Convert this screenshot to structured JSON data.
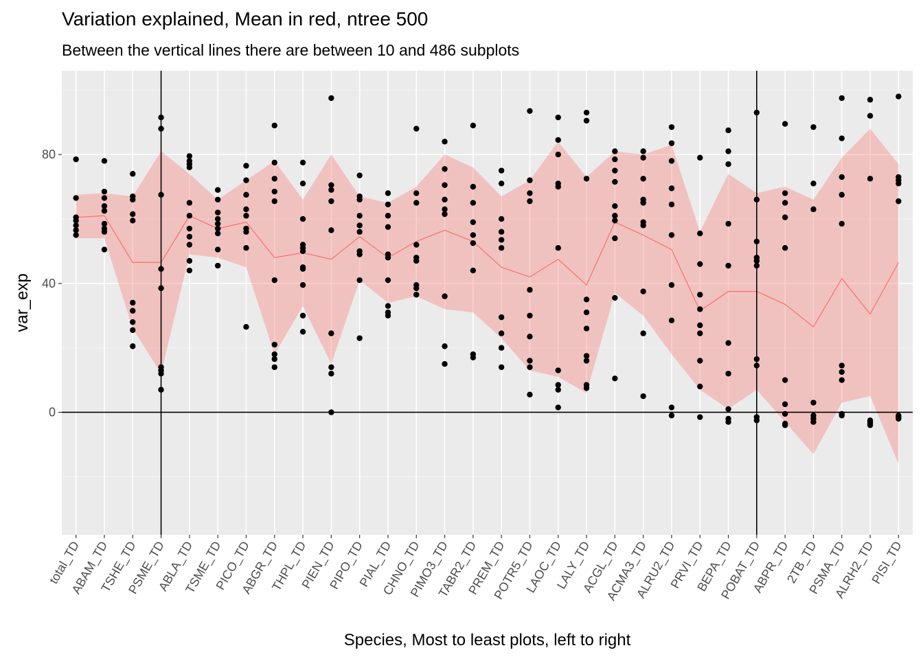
{
  "chart_data": {
    "type": "scatter",
    "title": "Variation explained, Mean in red, ntree 500",
    "subtitle": "Between the vertical lines there are between 10 and 486 subplots",
    "xlabel": "Species, Most to least plots, left to right",
    "ylabel": "var_exp",
    "ylim": [
      -38,
      106
    ],
    "yticks": [
      0,
      40,
      80
    ],
    "ytick_labels": [
      "0",
      "40",
      "80"
    ],
    "grid": true,
    "categories": [
      "total_TD",
      "ABAM_TD",
      "TSHE_TD",
      "PSME_TD",
      "ABLA_TD",
      "TSME_TD",
      "PICO_TD",
      "ABGR_TD",
      "THPL_TD",
      "PIEN_TD",
      "PIPO_TD",
      "PIAL_TD",
      "CHNO_TD",
      "PIMO3_TD",
      "TABR2_TD",
      "PREM_TD",
      "POTR5_TD",
      "LAOC_TD",
      "LALY_TD",
      "ACGL_TD",
      "ACMA3_TD",
      "ALRU2_TD",
      "PRVI_TD",
      "BEPA_TD",
      "POBAT_TD",
      "ABPR_TD",
      "2TB_TD",
      "PSMA_TD",
      "ALRH2_TD",
      "PISI_TD"
    ],
    "vlines_at": [
      "PSME_TD",
      "POBAT_TD"
    ],
    "hline": 0,
    "mean": [
      60.5,
      61,
      46.5,
      46.5,
      61,
      57,
      59,
      48,
      49.5,
      47.5,
      54.5,
      48,
      53,
      56.5,
      53,
      45,
      42,
      47.5,
      39.5,
      59,
      55,
      50.5,
      31.5,
      37.5,
      37.5,
      33.5,
      26.5,
      41.5,
      30.5,
      46.5
    ],
    "ribbon_upper": [
      67.5,
      68,
      67,
      81,
      74,
      66,
      72,
      78,
      66,
      80,
      67,
      65,
      70,
      80,
      76,
      67,
      72,
      84,
      73,
      81,
      80,
      83,
      56,
      74,
      68,
      70,
      66,
      79,
      88,
      77
    ],
    "ribbon_lower": [
      54,
      54,
      26,
      12,
      49,
      48,
      45,
      18,
      33,
      15,
      41,
      34,
      36,
      32,
      31,
      23,
      13,
      11,
      6,
      37,
      30,
      18,
      7,
      1,
      7,
      -3,
      -13,
      3,
      5,
      -16
    ],
    "points": [
      [
        78.5,
        66.5,
        60.5,
        59.5,
        58,
        56.5,
        55
      ],
      [
        78,
        68.5,
        66.5,
        64,
        62.5,
        58.5,
        57,
        56,
        50.5
      ],
      [
        74,
        67,
        66,
        61.5,
        59.5,
        34,
        31.5,
        28,
        25.5,
        20.5
      ],
      [
        91.5,
        88,
        67.5,
        44.5,
        38.5,
        14,
        13,
        12,
        7
      ],
      [
        79.5,
        78,
        77,
        76,
        65,
        61,
        57,
        54.5,
        52,
        47,
        44
      ],
      [
        69,
        66,
        62,
        60,
        58.5,
        57,
        55.5,
        50.5,
        45.5
      ],
      [
        76.5,
        72,
        67.5,
        63,
        61,
        57,
        56,
        51,
        26.5
      ],
      [
        89,
        77.5,
        72.5,
        68.5,
        65.5,
        41,
        21,
        18,
        16.5,
        14
      ],
      [
        77.5,
        71,
        60,
        52,
        51,
        50,
        45,
        44.5,
        39.5,
        30,
        25
      ],
      [
        97.5,
        70.5,
        69,
        65.5,
        56.5,
        24.5,
        14,
        12,
        0
      ],
      [
        73.5,
        67,
        66,
        61,
        58,
        56,
        50,
        49,
        41,
        23
      ],
      [
        68,
        64.5,
        61,
        57.5,
        49,
        48,
        41,
        33,
        31,
        30
      ],
      [
        88,
        68,
        65,
        52,
        48,
        47,
        39.5,
        38.5,
        36.5
      ],
      [
        84,
        75.5,
        70.5,
        66,
        63,
        61.5,
        36,
        20.5,
        15
      ],
      [
        89,
        70,
        65,
        59,
        55,
        52.5,
        44,
        18,
        17
      ],
      [
        75,
        71,
        60,
        56,
        53.5,
        51,
        29.5,
        24.5,
        20,
        14
      ],
      [
        93.5,
        72,
        68,
        65.5,
        38,
        30,
        23.5,
        16,
        14,
        5.5
      ],
      [
        91.5,
        84.5,
        80,
        71,
        70,
        51,
        13,
        8.5,
        7,
        1.5
      ],
      [
        93,
        90.5,
        72.5,
        35,
        31,
        26,
        17.5,
        16,
        8.5,
        7.5
      ],
      [
        81,
        78.5,
        75,
        71.5,
        64,
        61,
        59.5,
        54,
        35.5,
        10.5
      ],
      [
        81,
        79,
        72.5,
        66,
        65,
        59,
        58,
        37.5,
        24.5,
        5
      ],
      [
        88.5,
        83.5,
        78,
        69.5,
        64.5,
        55,
        39.5,
        28.5,
        1.5,
        -1
      ],
      [
        79,
        55.5,
        46,
        36.5,
        32,
        27,
        24.5,
        16,
        8,
        -1.5
      ],
      [
        87.5,
        81,
        77,
        58.5,
        45.5,
        21.5,
        12,
        1,
        -2,
        -3
      ],
      [
        93,
        66,
        53,
        48,
        47,
        45.5,
        16.5,
        14.5,
        -1.5,
        -2.5
      ],
      [
        89.5,
        68,
        65,
        60.5,
        51,
        10,
        2.5,
        -0.5,
        -3.5,
        -4
      ],
      [
        88.5,
        71,
        63,
        3,
        -1,
        -2,
        -3
      ],
      [
        97.5,
        85,
        73,
        67.5,
        58.5,
        14.5,
        12.5,
        10,
        -0.5,
        -1
      ],
      [
        97,
        92,
        72.5,
        -2.5,
        -3,
        -3.5,
        -4
      ],
      [
        98,
        73,
        72,
        71,
        65.5,
        -1,
        -1.5,
        -2
      ]
    ],
    "colors": {
      "panel": "#ebebeb",
      "grid_major": "#ffffff",
      "grid_minor": "#f4f4f4",
      "ribbon": "#f8766d",
      "mean_line": "#f8766d",
      "points": "#000000",
      "reference_lines": "#000000"
    }
  }
}
